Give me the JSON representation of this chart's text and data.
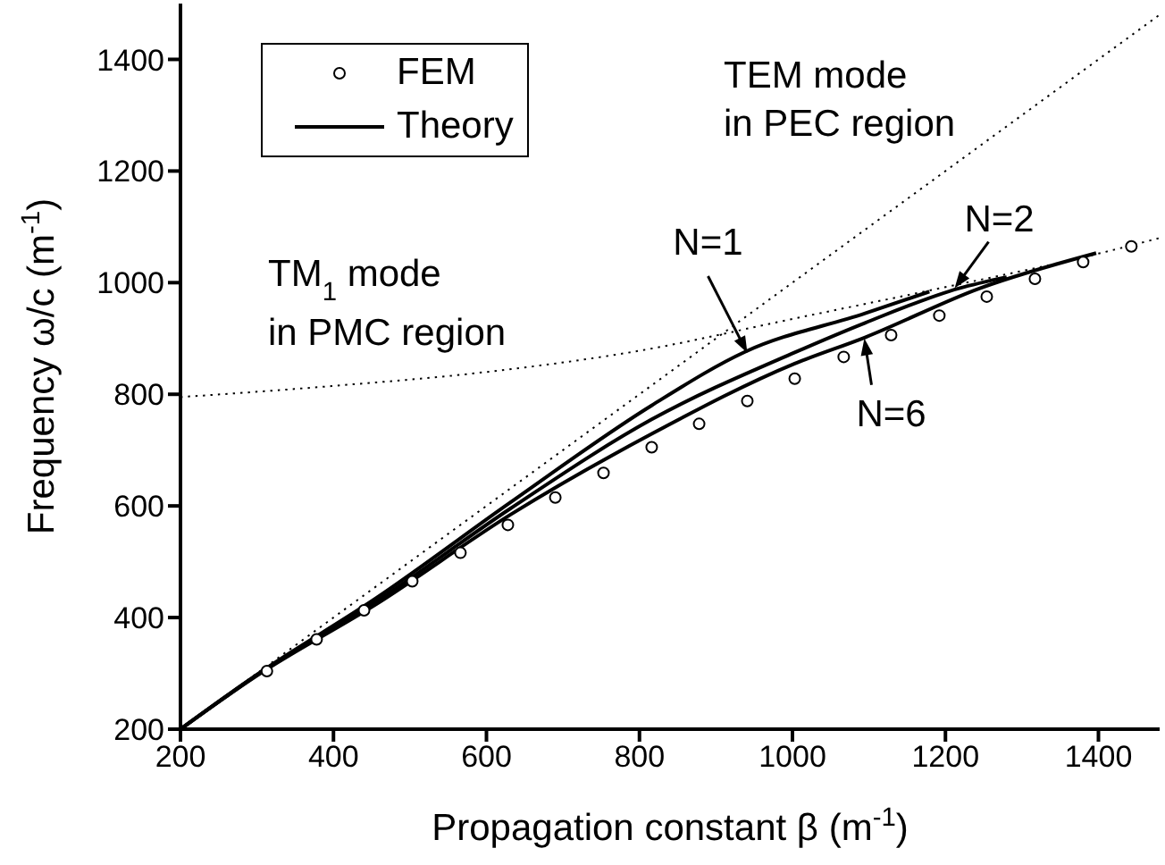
{
  "chart_data": {
    "type": "line",
    "xlabel": "Propagation constant β (m$^{-1}$)",
    "ylabel": "Frequency ω/c (m$^{-1}$)",
    "xlim": [
      200,
      1480
    ],
    "ylim": [
      200,
      1500
    ],
    "xticks": [
      200,
      400,
      600,
      800,
      1000,
      1200,
      1400
    ],
    "yticks": [
      200,
      400,
      600,
      800,
      1000,
      1200,
      1400
    ],
    "grid": false,
    "legend": "top left",
    "series": [
      {
        "name": "FEM",
        "type": "scatter",
        "marker": "circle",
        "color": "#000000",
        "x": [
          313,
          378,
          440,
          503,
          566,
          628,
          690,
          753,
          816,
          878,
          941,
          1003,
          1067,
          1129,
          1192,
          1254,
          1317,
          1380,
          1443
        ],
        "values": [
          304,
          361,
          413,
          465,
          516,
          566,
          615,
          659,
          705,
          747,
          788,
          828,
          867,
          906,
          941,
          975,
          1007,
          1037,
          1065
        ]
      },
      {
        "name": "Theory",
        "line_style": "solid",
        "color": "#000000",
        "x": [
          200,
          300,
          456,
          631,
          816,
          938,
          1095,
          1179
        ],
        "values": [
          200,
          298,
          435,
          606,
          780,
          876,
          945,
          984
        ]
      },
      {
        "line_style": "solid",
        "color": "#000000",
        "x": [
          200,
          300,
          456,
          631,
          816,
          1003,
          1095,
          1218,
          1280
        ],
        "values": [
          200,
          297,
          429,
          595,
          755,
          875,
          928,
          990,
          1010
        ]
      },
      {
        "line_style": "solid",
        "color": "#000000",
        "x": [
          200,
          300,
          456,
          631,
          816,
          1003,
          1095,
          1245,
          1397
        ],
        "values": [
          200,
          296,
          424,
          584,
          729,
          855,
          902,
          990,
          1053
        ]
      },
      {
        "line_style": "dotted",
        "color": "#000000",
        "x": [
          200,
          1480
        ],
        "values": [
          200,
          1480
        ]
      },
      {
        "line_style": "dotted",
        "color": "#000000",
        "x": [
          200,
          400,
          600,
          800,
          1000,
          1200,
          1400,
          1480
        ],
        "values": [
          795,
          815,
          840,
          878,
          935,
          992,
          1052,
          1080
        ]
      }
    ],
    "annotations": [
      "TEM mode\nin PEC region",
      "TM$_{1}$ mode\nin PMC region",
      {
        "text": "N=1",
        "x": 941,
        "y": 874
      },
      {
        "text": "N=2",
        "x": 1212,
        "y": 990
      },
      {
        "text": "N=6",
        "x": 1094,
        "y": 900
      }
    ]
  }
}
